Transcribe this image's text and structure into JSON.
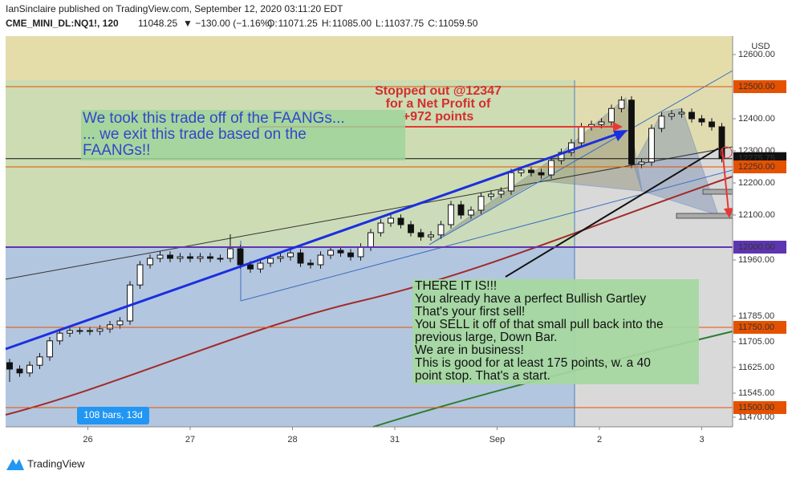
{
  "header": {
    "published": "IanSinclaire published on TradingView.com, September 12, 2020 03:11:20 EDT",
    "symbol": "CME_MINI_DL:NQ1!, 120",
    "last": "11048.25",
    "change": "▼ −130.00 (−1.16%)",
    "ohlc": [
      {
        "key": "O:",
        "value": "11071.25"
      },
      {
        "key": "H:",
        "value": "11085.00"
      },
      {
        "key": "L:",
        "value": "11037.75"
      },
      {
        "key": "C:",
        "value": "11059.50"
      }
    ]
  },
  "chart_data": {
    "type": "candlestick",
    "currency": "USD",
    "up_color": "#ffffff",
    "down_color": "#111111",
    "open": [
      11640,
      11620,
      11608,
      11632,
      11658,
      11708,
      11732,
      11740,
      11740,
      11738,
      11745,
      11758,
      11770,
      11882,
      11945,
      11965,
      11975,
      11965,
      11970,
      11965,
      11970,
      11965,
      11965,
      11995,
      11945,
      11932,
      11950,
      11965,
      11970,
      11982,
      11950,
      11945,
      11975,
      11990,
      11982,
      11970,
      12000,
      12045,
      12075,
      12090,
      12070,
      12045,
      12032,
      12038,
      12070,
      12132,
      12100,
      12115,
      12158,
      12165,
      12175,
      12232,
      12240,
      12232,
      12225,
      12270,
      12295,
      12325,
      12375,
      12382,
      12390,
      12432,
      12458,
      12258,
      12265,
      12370,
      12408,
      12415,
      12420,
      12400,
      12390,
      12375
    ],
    "high": [
      11652,
      11632,
      11644,
      11670,
      11720,
      11744,
      11752,
      11752,
      11752,
      11757,
      11770,
      11782,
      11894,
      11957,
      11977,
      11987,
      11987,
      11982,
      11982,
      11982,
      11982,
      11977,
      12040,
      12007,
      11957,
      11962,
      11977,
      11982,
      11994,
      11994,
      11962,
      11987,
      12002,
      12002,
      11994,
      12012,
      12057,
      12087,
      12102,
      12102,
      12082,
      12057,
      12050,
      12082,
      12144,
      12144,
      12127,
      12170,
      12177,
      12187,
      12244,
      12252,
      12252,
      12244,
      12282,
      12307,
      12337,
      12387,
      12394,
      12402,
      12444,
      12470,
      12470,
      12277,
      12382,
      12420,
      12427,
      12432,
      12432,
      12412,
      12402,
      12387
    ],
    "low": [
      11580,
      11596,
      11596,
      11620,
      11646,
      11696,
      11720,
      11728,
      11726,
      11726,
      11733,
      11746,
      11758,
      11870,
      11933,
      11953,
      11953,
      11953,
      11953,
      11953,
      11953,
      11953,
      11953,
      11933,
      11920,
      11920,
      11938,
      11953,
      11958,
      11938,
      11933,
      11933,
      11963,
      11970,
      11958,
      11958,
      11988,
      12033,
      12063,
      12058,
      12033,
      12020,
      12020,
      12026,
      12058,
      12088,
      12088,
      12103,
      12146,
      12153,
      12163,
      12220,
      12220,
      12213,
      12213,
      12258,
      12283,
      12313,
      12363,
      12370,
      12378,
      12420,
      12246,
      12246,
      12253,
      12358,
      12396,
      12403,
      12388,
      12378,
      12363,
      12264
    ],
    "close": [
      11620,
      11608,
      11632,
      11658,
      11708,
      11732,
      11740,
      11740,
      11738,
      11745,
      11758,
      11770,
      11882,
      11945,
      11965,
      11975,
      11965,
      11970,
      11965,
      11970,
      11965,
      11965,
      11995,
      11945,
      11932,
      11950,
      11965,
      11970,
      11982,
      11950,
      11945,
      11975,
      11990,
      11982,
      11970,
      12000,
      12045,
      12075,
      12090,
      12070,
      12045,
      12032,
      12038,
      12070,
      12132,
      12100,
      12115,
      12158,
      12165,
      12175,
      12232,
      12240,
      12232,
      12225,
      12270,
      12295,
      12325,
      12375,
      12382,
      12390,
      12432,
      12458,
      12258,
      12265,
      12370,
      12408,
      12415,
      12420,
      12400,
      12390,
      12375,
      12276
    ],
    "xlim": [
      -0.4,
      72.08
    ],
    "xticks": [
      {
        "value": 7.8,
        "label": "26"
      },
      {
        "value": 18,
        "label": "27"
      },
      {
        "value": 28.2,
        "label": "28"
      },
      {
        "value": 38.4,
        "label": "31"
      },
      {
        "value": 48.6,
        "label": "Sep"
      },
      {
        "value": 58.8,
        "label": "2"
      },
      {
        "value": 69,
        "label": "3"
      }
    ],
    "ylim": [
      11440,
      12657.5
    ],
    "yticks": [
      {
        "value": 12600,
        "label": "12600.00"
      },
      {
        "value": 12400,
        "label": "12400.00"
      },
      {
        "value": 12300,
        "label": "12300.00"
      },
      {
        "value": 12200,
        "label": "12200.00"
      },
      {
        "value": 12100,
        "label": "12100.00"
      },
      {
        "value": 11960,
        "label": "11960.00"
      },
      {
        "value": 11785,
        "label": "11785.00"
      },
      {
        "value": 11705,
        "label": "11705.00"
      },
      {
        "value": 11625,
        "label": "11625.00"
      },
      {
        "value": 11545,
        "label": "11545.00"
      },
      {
        "value": 11470,
        "label": "11470.00"
      }
    ],
    "price_lines": [
      {
        "value": 12500,
        "label": "12500.00",
        "color": "#e65100"
      },
      {
        "value": 12275.75,
        "label": "12275.75",
        "color": "#111111"
      },
      {
        "value": 12250,
        "label": "12250.00",
        "color": "#e65100"
      },
      {
        "value": 12000,
        "label": "12000.00",
        "color": "#5e35b1"
      },
      {
        "value": 11750,
        "label": "11750.00",
        "color": "#e65100"
      },
      {
        "value": 11500,
        "label": "11500.00",
        "color": "#e65100"
      }
    ],
    "range_label": "108 bars, 13d",
    "annotations": {
      "stopped": [
        "Stopped out @12347",
        "for a Net Profit of",
        "+972 points"
      ],
      "faang": [
        "We took this trade off of the FAANGs...",
        "... we exit this trade based on the",
        "FAANGs!!"
      ],
      "gartley": [
        "THERE IT IS!!!",
        "You already have a perfect Bullish Gartley",
        "That's your first sell!",
        "You SELL it off of that small pull back into the",
        "previous large, Down Bar.",
        "We are in business!",
        "This is good for at least 175 points, w. a 40",
        "point stop. That's a start."
      ]
    }
  },
  "footer": {
    "brand": "TradingView"
  }
}
